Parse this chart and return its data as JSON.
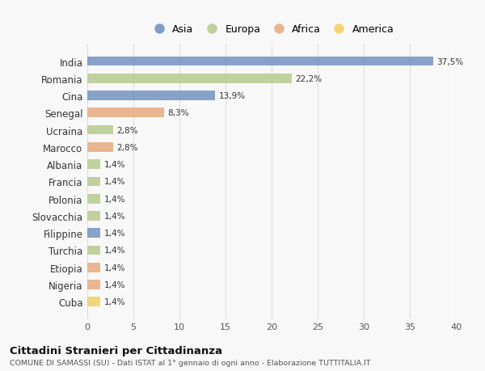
{
  "categories": [
    "India",
    "Romania",
    "Cina",
    "Senegal",
    "Ucraina",
    "Marocco",
    "Albania",
    "Francia",
    "Polonia",
    "Slovacchia",
    "Filippine",
    "Turchia",
    "Etiopia",
    "Nigeria",
    "Cuba"
  ],
  "values": [
    37.5,
    22.2,
    13.9,
    8.3,
    2.8,
    2.8,
    1.4,
    1.4,
    1.4,
    1.4,
    1.4,
    1.4,
    1.4,
    1.4,
    1.4
  ],
  "labels": [
    "37,5%",
    "22,2%",
    "13,9%",
    "8,3%",
    "2,8%",
    "2,8%",
    "1,4%",
    "1,4%",
    "1,4%",
    "1,4%",
    "1,4%",
    "1,4%",
    "1,4%",
    "1,4%",
    "1,4%"
  ],
  "colors": [
    "#6d8fbe",
    "#b5c98a",
    "#6d8fbe",
    "#e8a87c",
    "#b5c98a",
    "#e8a87c",
    "#b5c98a",
    "#b5c98a",
    "#b5c98a",
    "#b5c98a",
    "#6d8fbe",
    "#b5c98a",
    "#e8a87c",
    "#e8a87c",
    "#f0d060"
  ],
  "legend_labels": [
    "Asia",
    "Europa",
    "Africa",
    "America"
  ],
  "legend_colors": [
    "#6d8fbe",
    "#b5c98a",
    "#e8a87c",
    "#f0d060"
  ],
  "title": "Cittadini Stranieri per Cittadinanza",
  "subtitle": "COMUNE DI SAMASSI (SU) - Dati ISTAT al 1° gennaio di ogni anno - Elaborazione TUTTITALIA.IT",
  "xlim": [
    0,
    40
  ],
  "xticks": [
    0,
    5,
    10,
    15,
    20,
    25,
    30,
    35,
    40
  ],
  "background_color": "#f8f8f8",
  "grid_color": "#dddddd",
  "bar_height": 0.55
}
